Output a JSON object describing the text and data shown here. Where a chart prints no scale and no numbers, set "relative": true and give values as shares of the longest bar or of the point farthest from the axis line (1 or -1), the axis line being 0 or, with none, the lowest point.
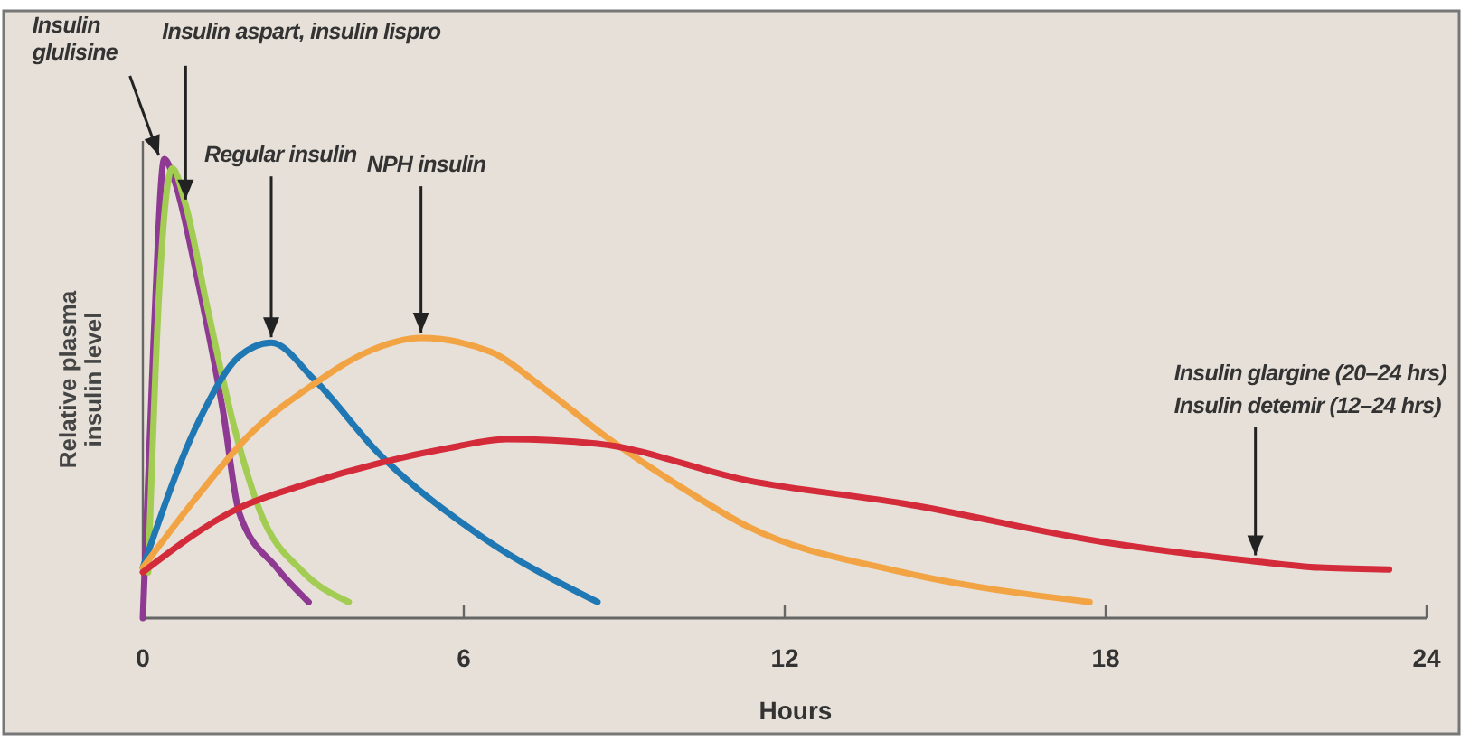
{
  "chart_data": {
    "type": "line",
    "relative": true,
    "xlabel": "Hours",
    "ylabel": "Relative plasma insulin level",
    "xlim": [
      0,
      24
    ],
    "xticks": [
      0,
      6,
      12,
      18,
      24
    ],
    "grid": false,
    "marker": "none",
    "line_style": "solid",
    "series": [
      {
        "color": "#8e3a93",
        "x": [
          0,
          0.2,
          0.4,
          0.6,
          1,
          1.5,
          1.8,
          2.5,
          3.1
        ],
        "values": [
          0,
          0.6,
          1,
          0.95,
          0.75,
          0.45,
          0.23,
          0.11,
          0.035
        ]
      },
      {
        "color": "#a3cc52",
        "x": [
          0.1,
          0.3,
          0.55,
          0.8,
          1.2,
          1.7,
          2.2,
          3,
          3.85
        ],
        "values": [
          0.1,
          0.7,
          0.98,
          0.9,
          0.68,
          0.42,
          0.23,
          0.1,
          0.035
        ]
      },
      {
        "color": "#1f78b4",
        "x": [
          0,
          1.05,
          1.8,
          2.4,
          3.2,
          4.4,
          6.3,
          8.5
        ],
        "values": [
          0.11,
          0.43,
          0.57,
          0.6,
          0.52,
          0.36,
          0.18,
          0.035
        ]
      },
      {
        "color": "#f2a444",
        "x": [
          0,
          1.05,
          2,
          3.2,
          4.2,
          5.2,
          6.5,
          7.5,
          8.6,
          10,
          11.3,
          14.2,
          17.7
        ],
        "values": [
          0.11,
          0.27,
          0.4,
          0.51,
          0.58,
          0.61,
          0.58,
          0.5,
          0.4,
          0.29,
          0.2,
          0.1,
          0.035
        ]
      },
      {
        "color": "#d42b3a",
        "x": [
          0,
          1.8,
          3,
          4.5,
          5.7,
          6.8,
          8.5,
          11.3,
          14.2,
          18,
          20.7,
          22,
          23.3
        ],
        "values": [
          0.1,
          0.24,
          0.29,
          0.34,
          0.37,
          0.39,
          0.38,
          0.3,
          0.25,
          0.165,
          0.125,
          0.11,
          0.106
        ]
      }
    ],
    "annotations": [
      {
        "text": "Insulin glulisine",
        "x": 0.4,
        "y": 1
      },
      {
        "text": "Insulin aspart, insulin lispro",
        "x": 0.8,
        "y": 0.9
      },
      {
        "text": "Regular insulin",
        "x": 2.4,
        "y": 0.6
      },
      {
        "text": "NPH insulin",
        "x": 5.2,
        "y": 0.61
      },
      "Insulin glargine (20–24 hrs)",
      {
        "text": "Insulin detemir (12–24 hrs)",
        "x": 20.8,
        "y": 0.125
      }
    ]
  }
}
